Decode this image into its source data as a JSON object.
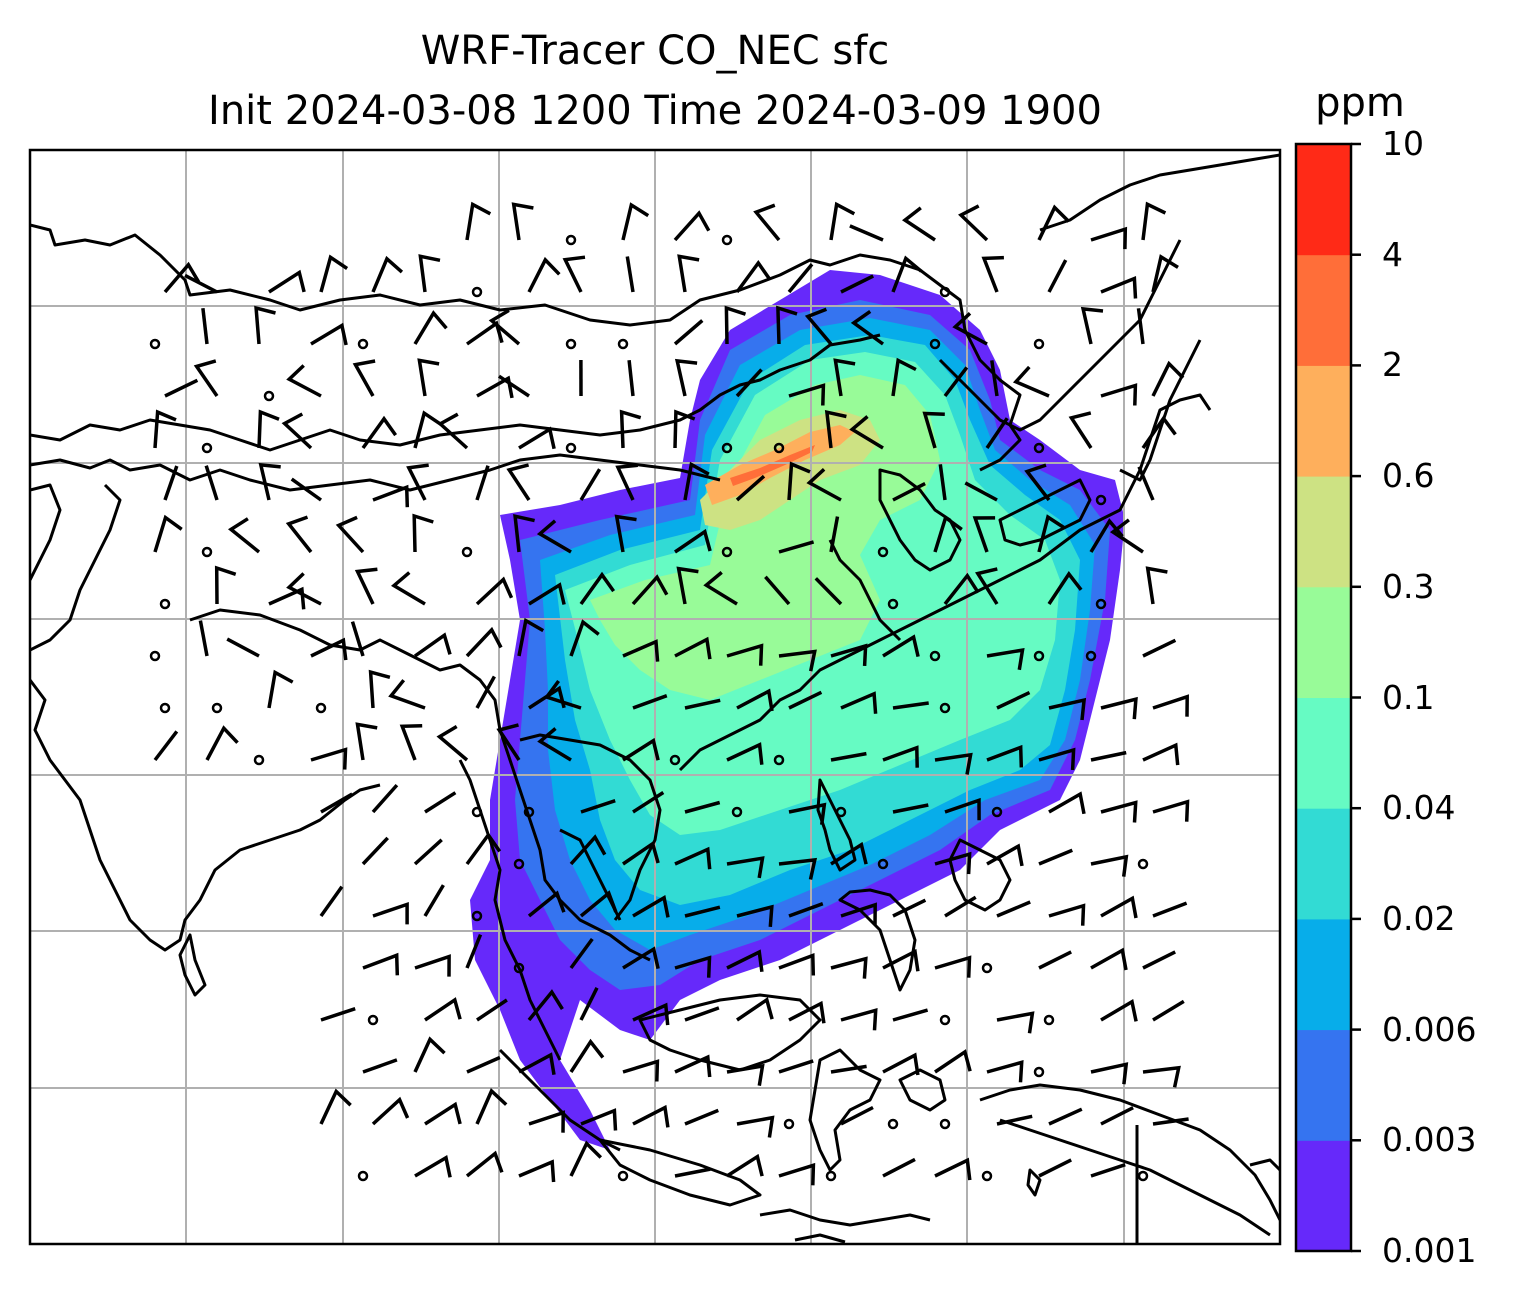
{
  "title": {
    "line1": "WRF-Tracer CO_NEC sfc",
    "line2": "Init 2024-03-08 1200 Time 2024-03-09 1900"
  },
  "colorbar": {
    "unit": "ppm",
    "levels": [
      "0.001",
      "0.003",
      "0.006",
      "0.02",
      "0.04",
      "0.1",
      "0.3",
      "0.6",
      "2",
      "4",
      "10"
    ],
    "colors": [
      "#6629fa",
      "#3574f0",
      "#07adea",
      "#32dbd4",
      "#66fbc3",
      "#98fb98",
      "#cde283",
      "#feaf5c",
      "#ff6e39",
      "#ff2a17"
    ]
  },
  "map": {
    "projection": "lat-lon",
    "gridlines": true,
    "gridline_color": "#b0b0b0",
    "coastline_color": "#000000",
    "field": "CO_NEC tracer concentration (surface)",
    "overlay": "wind barbs"
  }
}
